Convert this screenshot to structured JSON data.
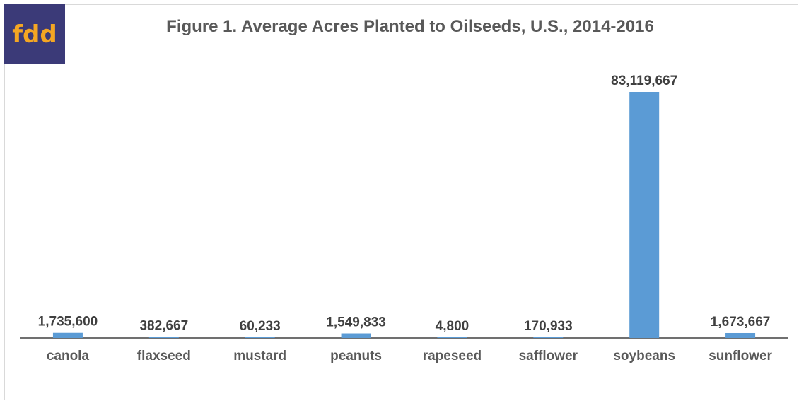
{
  "logo": {
    "text": "fdd",
    "bg_color": "#3b3a78",
    "text_color": "#f4a623"
  },
  "chart_data": {
    "type": "bar",
    "title": "Figure 1. Average Acres Planted to Oilseeds, U.S., 2014-2016",
    "categories": [
      "canola",
      "flaxseed",
      "mustard",
      "peanuts",
      "rapeseed",
      "safflower",
      "soybeans",
      "sunflower"
    ],
    "values": [
      1735600,
      382667,
      60233,
      1549833,
      4800,
      170933,
      83119667,
      1673667
    ],
    "value_labels": [
      "1,735,600",
      "382,667",
      "60,233",
      "1,549,833",
      "4,800",
      "170,933",
      "83,119,667",
      "1,673,667"
    ],
    "xlabel": "",
    "ylabel": "",
    "ylim": [
      0,
      83119667
    ],
    "grid": false,
    "legend": "none",
    "bar_color": "#5b9bd5",
    "axis_color": "#404040"
  }
}
